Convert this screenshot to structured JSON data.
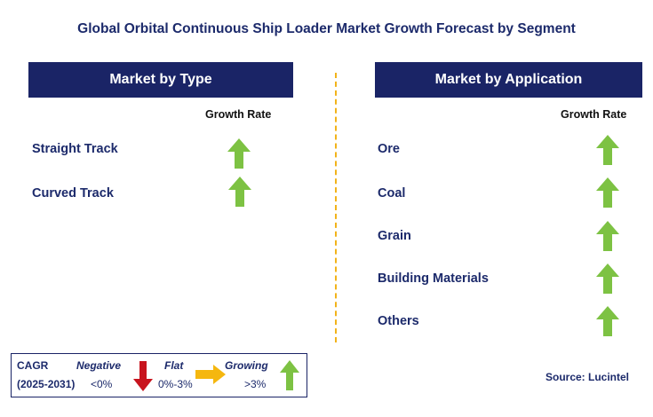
{
  "title": "Global Orbital Continuous Ship Loader Market Growth Forecast by Segment",
  "left_panel": {
    "header": "Market by Type",
    "growth_label": "Growth Rate",
    "rows": [
      {
        "label": "Straight Track",
        "trend": "growing"
      },
      {
        "label": "Curved Track",
        "trend": "growing"
      }
    ]
  },
  "right_panel": {
    "header": "Market by Application",
    "growth_label": "Growth Rate",
    "rows": [
      {
        "label": "Ore",
        "trend": "growing"
      },
      {
        "label": "Coal",
        "trend": "growing"
      },
      {
        "label": "Grain",
        "trend": "growing"
      },
      {
        "label": "Building Materials",
        "trend": "growing"
      },
      {
        "label": "Others",
        "trend": "growing"
      }
    ]
  },
  "legend": {
    "cagr_label": "CAGR",
    "period": "(2025-2031)",
    "negative_label": "Negative",
    "negative_range": "<0%",
    "flat_label": "Flat",
    "flat_range": "0%-3%",
    "growing_label": "Growing",
    "growing_range": ">3%"
  },
  "source": "Source: Lucintel",
  "colors": {
    "header_bg": "#1a2466",
    "text": "#1c2a6b",
    "growing": "#7dc243",
    "negative": "#c8141e",
    "flat": "#f5b70f",
    "divider": "#f2b31a"
  }
}
